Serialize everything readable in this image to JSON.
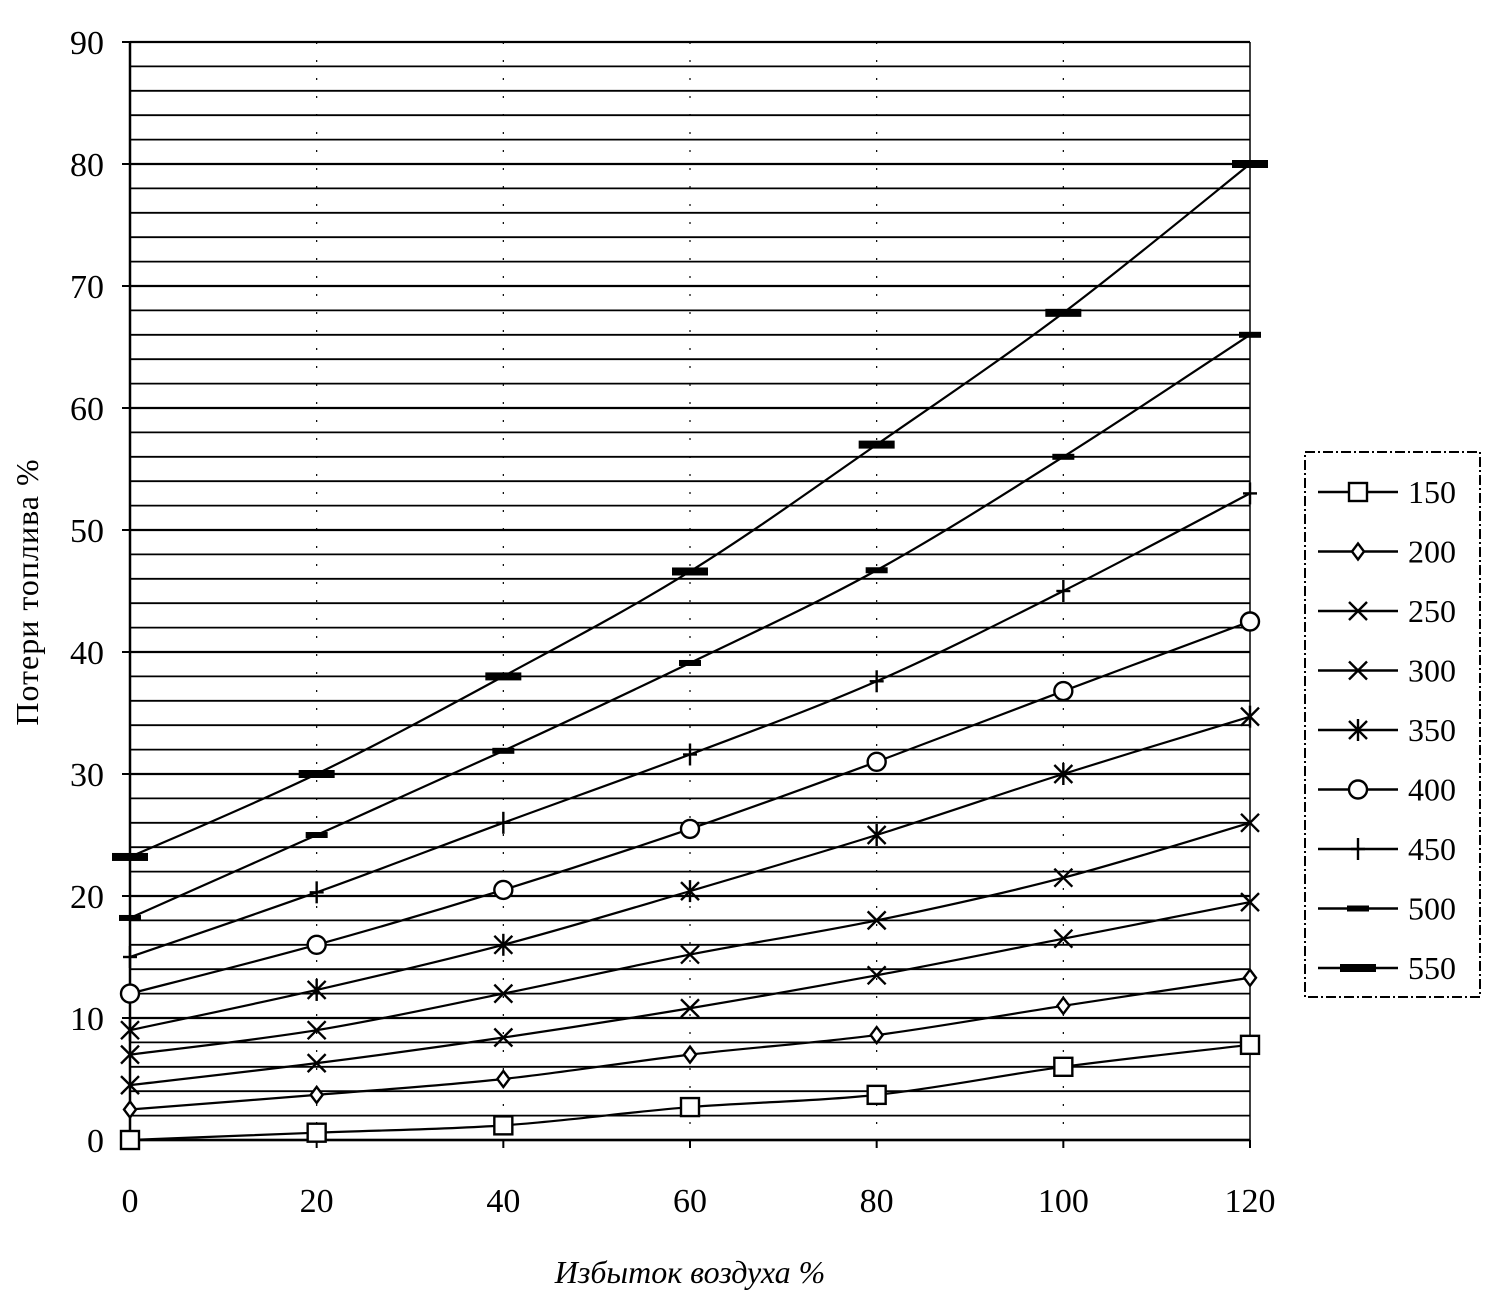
{
  "chart_data": {
    "type": "line",
    "title": "",
    "xlabel": "Избыток воздуха  %",
    "ylabel": "Потери топлива %",
    "xlim": [
      0,
      120
    ],
    "ylim": [
      0,
      90
    ],
    "x_ticks": [
      0,
      20,
      40,
      60,
      80,
      100,
      120
    ],
    "y_ticks": [
      0,
      10,
      20,
      30,
      40,
      50,
      60,
      70,
      80,
      90
    ],
    "x": [
      0,
      20,
      40,
      60,
      80,
      100,
      120
    ],
    "grid": "horizontal lines",
    "legend_position": "right",
    "series": [
      {
        "name": "150",
        "marker": "square",
        "values": [
          0,
          0.6,
          1.2,
          2.7,
          3.7,
          6.0,
          7.8
        ]
      },
      {
        "name": "200",
        "marker": "diamond",
        "values": [
          2.5,
          3.7,
          5.0,
          7.0,
          8.6,
          11.0,
          13.3
        ]
      },
      {
        "name": "250",
        "marker": "x",
        "values": [
          4.5,
          6.3,
          8.4,
          10.8,
          13.5,
          16.5,
          19.5
        ]
      },
      {
        "name": "300",
        "marker": "x",
        "values": [
          7.0,
          9.0,
          12.0,
          15.2,
          18.0,
          21.5,
          26.0
        ]
      },
      {
        "name": "350",
        "marker": "asterisk",
        "values": [
          9.0,
          12.3,
          16.0,
          20.4,
          25.0,
          30.0,
          34.7
        ]
      },
      {
        "name": "400",
        "marker": "circle",
        "values": [
          12.0,
          16.0,
          20.5,
          25.5,
          31.0,
          36.8,
          42.5
        ]
      },
      {
        "name": "450",
        "marker": "plus",
        "values": [
          15.0,
          20.3,
          26.0,
          31.6,
          37.6,
          45.0,
          53.0
        ]
      },
      {
        "name": "500",
        "marker": "dash",
        "values": [
          18.2,
          25.0,
          31.9,
          39.1,
          46.7,
          56.0,
          66.0
        ]
      },
      {
        "name": "550",
        "marker": "bar",
        "values": [
          23.2,
          30.0,
          38.0,
          46.6,
          57.0,
          67.8,
          80.0
        ]
      }
    ]
  }
}
